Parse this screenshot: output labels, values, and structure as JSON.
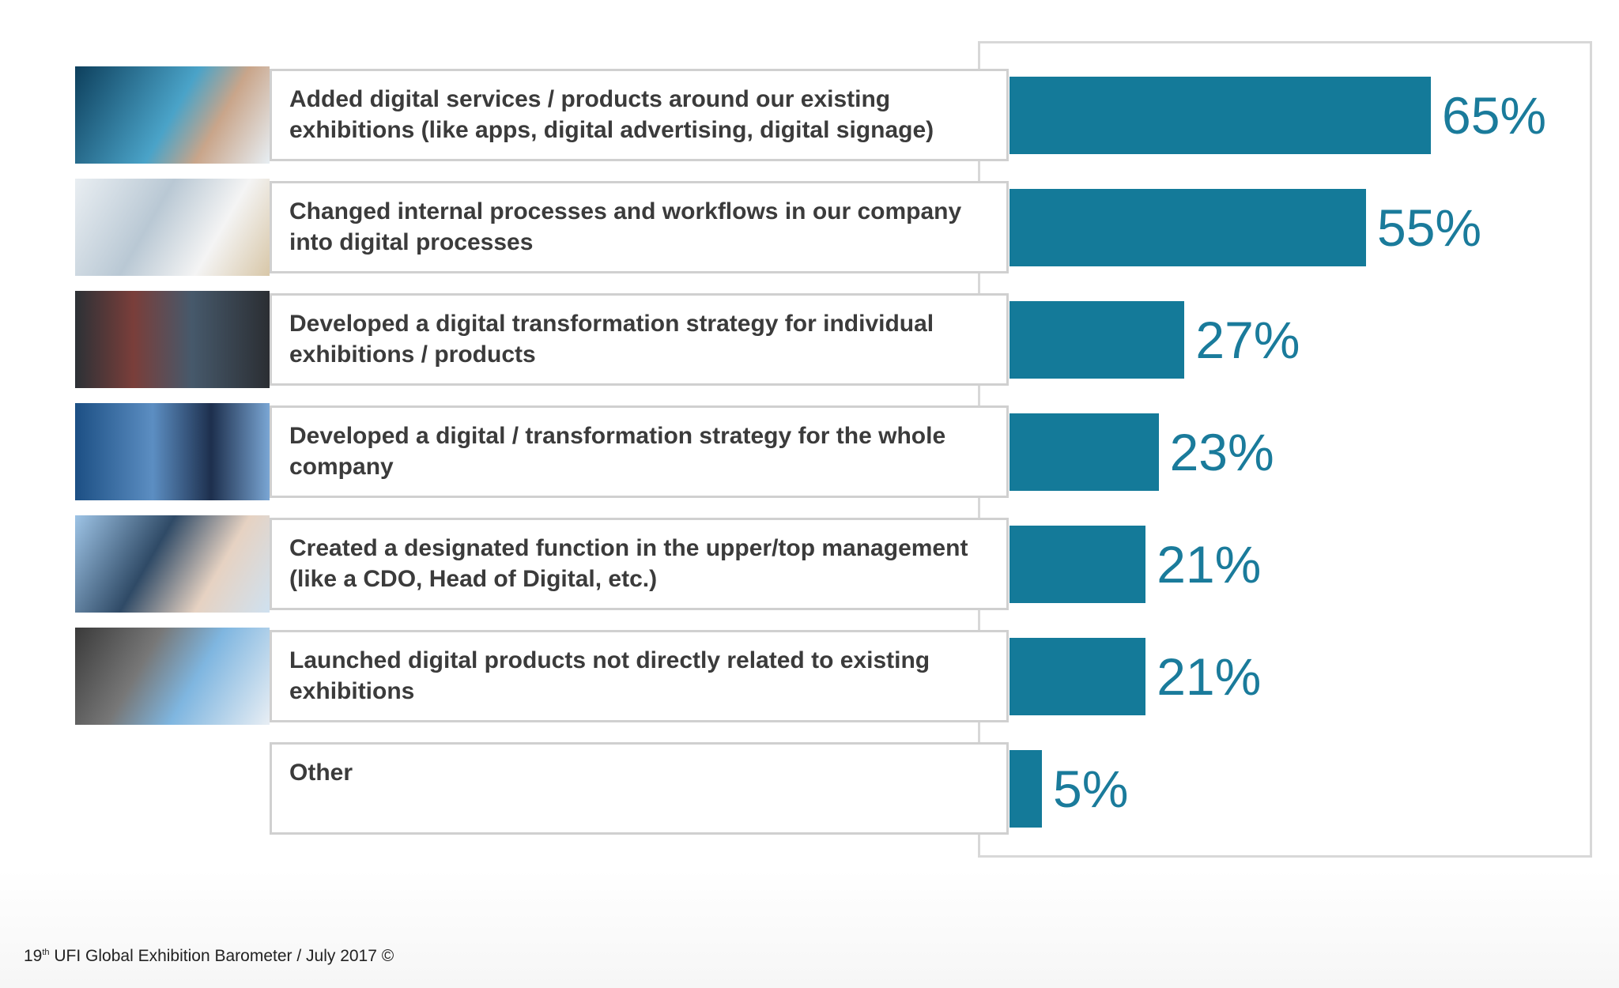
{
  "chart_data": {
    "type": "bar",
    "categories": [
      "Added digital services / products around our existing exhibitions (like apps, digital advertising, digital signage)",
      "Changed internal processes and workflows in our company into digital processes",
      "Developed a digital transformation strategy for individual exhibitions / products",
      "Developed a digital / transformation strategy for the whole company",
      "Created a designated function in the upper/top management (like a CDO, Head of Digital, etc.)",
      "Launched digital products not directly related to existing exhibitions",
      "Other"
    ],
    "values": [
      65,
      55,
      27,
      23,
      21,
      21,
      5
    ],
    "value_labels": [
      "65%",
      "55%",
      "27%",
      "23%",
      "21%",
      "21%",
      "5%"
    ],
    "color": "#147a99"
  },
  "footer": {
    "number": "19",
    "suffix": "th",
    "text": " UFI Global Exhibition Barometer / July 2017 ©"
  }
}
